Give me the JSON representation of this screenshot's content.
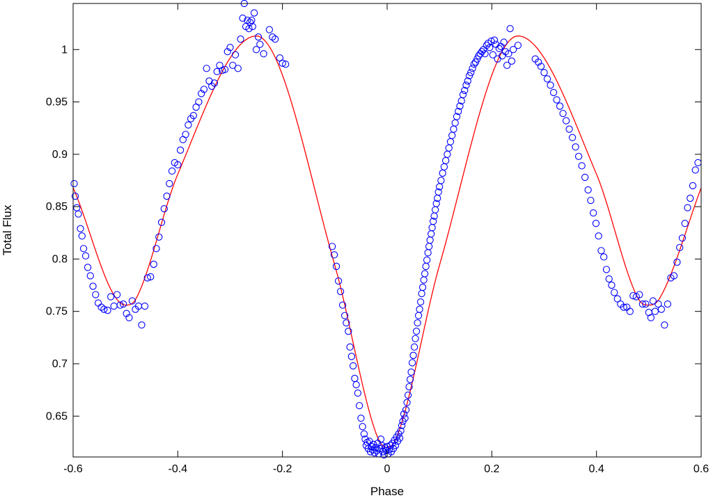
{
  "chart_data": {
    "type": "scatter",
    "title": "",
    "xlabel": "Phase",
    "ylabel": "Total Flux",
    "xlim": [
      -0.6,
      0.6
    ],
    "ylim": [
      0.611,
      1.044
    ],
    "grid": false,
    "legend": "none",
    "x_ticks": [
      -0.6,
      -0.4,
      -0.2,
      0,
      0.2,
      0.4,
      0.6
    ],
    "x_tick_labels": [
      "-0.6",
      "-0.4",
      "-0.2",
      "0",
      "0.2",
      "0.4",
      "0.6"
    ],
    "y_ticks": [
      0.65,
      0.7,
      0.75,
      0.8,
      0.85,
      0.9,
      0.95,
      1.0
    ],
    "y_tick_labels": [
      "0.65",
      "0.7",
      "0.75",
      "0.8",
      "0.85",
      "0.9",
      "0.95",
      "1"
    ],
    "colors": {
      "observed": "#0000ff",
      "model": "#ff0000"
    },
    "series": [
      {
        "kind": "scatter",
        "marker": "open-circle",
        "points": [
          [
            -0.598,
            0.872
          ],
          [
            -0.596,
            0.86
          ],
          [
            -0.593,
            0.849
          ],
          [
            -0.59,
            0.843
          ],
          [
            -0.586,
            0.829
          ],
          [
            -0.583,
            0.822
          ],
          [
            -0.58,
            0.81
          ],
          [
            -0.576,
            0.803
          ],
          [
            -0.572,
            0.792
          ],
          [
            -0.567,
            0.784
          ],
          [
            -0.562,
            0.774
          ],
          [
            -0.557,
            0.766
          ],
          [
            -0.552,
            0.758
          ],
          [
            -0.546,
            0.754
          ],
          [
            -0.541,
            0.752
          ],
          [
            -0.534,
            0.751
          ],
          [
            -0.528,
            0.764
          ],
          [
            -0.522,
            0.755
          ],
          [
            -0.516,
            0.766
          ],
          [
            -0.51,
            0.756
          ],
          [
            -0.504,
            0.757
          ],
          [
            -0.498,
            0.748
          ],
          [
            -0.493,
            0.744
          ],
          [
            -0.487,
            0.76
          ],
          [
            -0.481,
            0.752
          ],
          [
            -0.475,
            0.755
          ],
          [
            -0.469,
            0.737
          ],
          [
            -0.463,
            0.755
          ],
          [
            -0.458,
            0.782
          ],
          [
            -0.452,
            0.783
          ],
          [
            -0.446,
            0.795
          ],
          [
            -0.441,
            0.81
          ],
          [
            -0.436,
            0.821
          ],
          [
            -0.431,
            0.835
          ],
          [
            -0.426,
            0.848
          ],
          [
            -0.421,
            0.86
          ],
          [
            -0.416,
            0.872
          ],
          [
            -0.411,
            0.884
          ],
          [
            -0.406,
            0.892
          ],
          [
            -0.4,
            0.89
          ],
          [
            -0.395,
            0.904
          ],
          [
            -0.39,
            0.914
          ],
          [
            -0.385,
            0.919
          ],
          [
            -0.38,
            0.928
          ],
          [
            -0.375,
            0.934
          ],
          [
            -0.37,
            0.937
          ],
          [
            -0.365,
            0.945
          ],
          [
            -0.36,
            0.95
          ],
          [
            -0.355,
            0.958
          ],
          [
            -0.35,
            0.962
          ],
          [
            -0.345,
            0.982
          ],
          [
            -0.34,
            0.97
          ],
          [
            -0.335,
            0.965
          ],
          [
            -0.33,
            0.968
          ],
          [
            -0.325,
            0.979
          ],
          [
            -0.32,
            0.985
          ],
          [
            -0.315,
            0.98
          ],
          [
            -0.31,
            0.981
          ],
          [
            -0.305,
            0.998
          ],
          [
            -0.3,
            1.002
          ],
          [
            -0.295,
            0.985
          ],
          [
            -0.29,
            0.995
          ],
          [
            -0.285,
            0.982
          ],
          [
            -0.28,
            1.01
          ],
          [
            -0.276,
            1.03
          ],
          [
            -0.273,
            1.044
          ],
          [
            -0.27,
            1.022
          ],
          [
            -0.267,
            1.028
          ],
          [
            -0.264,
            1.02
          ],
          [
            -0.262,
            1.026
          ],
          [
            -0.259,
            1.028
          ],
          [
            -0.257,
            1.022
          ],
          [
            -0.254,
            1.035
          ],
          [
            -0.25,
            1.0
          ],
          [
            -0.246,
            1.012
          ],
          [
            -0.243,
            1.005
          ],
          [
            -0.236,
            0.996
          ],
          [
            -0.225,
            1.019
          ],
          [
            -0.219,
            1.012
          ],
          [
            -0.214,
            1.01
          ],
          [
            -0.205,
            0.992
          ],
          [
            -0.2,
            0.987
          ],
          [
            -0.194,
            0.986
          ],
          [
            -0.105,
            0.812
          ],
          [
            -0.101,
            0.804
          ],
          [
            -0.097,
            0.793
          ],
          [
            -0.093,
            0.779
          ],
          [
            -0.089,
            0.769
          ],
          [
            -0.085,
            0.756
          ],
          [
            -0.081,
            0.746
          ],
          [
            -0.078,
            0.739
          ],
          [
            -0.074,
            0.731
          ],
          [
            -0.071,
            0.716
          ],
          [
            -0.068,
            0.707
          ],
          [
            -0.065,
            0.698
          ],
          [
            -0.062,
            0.686
          ],
          [
            -0.059,
            0.68
          ],
          [
            -0.056,
            0.672
          ],
          [
            -0.053,
            0.66
          ],
          [
            -0.05,
            0.648
          ],
          [
            -0.047,
            0.64
          ],
          [
            -0.044,
            0.633
          ],
          [
            -0.042,
            0.628
          ],
          [
            -0.04,
            0.622
          ],
          [
            -0.038,
            0.625
          ],
          [
            -0.036,
            0.619
          ],
          [
            -0.034,
            0.626
          ],
          [
            -0.032,
            0.616
          ],
          [
            -0.03,
            0.621
          ],
          [
            -0.028,
            0.618
          ],
          [
            -0.026,
            0.623
          ],
          [
            -0.024,
            0.615
          ],
          [
            -0.022,
            0.62
          ],
          [
            -0.02,
            0.617
          ],
          [
            -0.018,
            0.624
          ],
          [
            -0.016,
            0.614
          ],
          [
            -0.014,
            0.619
          ],
          [
            -0.012,
            0.628
          ],
          [
            -0.01,
            0.622
          ],
          [
            -0.008,
            0.616
          ],
          [
            -0.006,
            0.613
          ],
          [
            -0.004,
            0.62
          ],
          [
            -0.002,
            0.617
          ],
          [
            0.0,
            0.621
          ],
          [
            0.002,
            0.614
          ],
          [
            0.004,
            0.618
          ],
          [
            0.006,
            0.622
          ],
          [
            0.008,
            0.616
          ],
          [
            0.01,
            0.624
          ],
          [
            0.012,
            0.619
          ],
          [
            0.014,
            0.627
          ],
          [
            0.016,
            0.622
          ],
          [
            0.018,
            0.63
          ],
          [
            0.02,
            0.626
          ],
          [
            0.022,
            0.633
          ],
          [
            0.024,
            0.629
          ],
          [
            0.026,
            0.636
          ],
          [
            0.028,
            0.641
          ],
          [
            0.03,
            0.645
          ],
          [
            0.032,
            0.652
          ],
          [
            0.034,
            0.648
          ],
          [
            0.036,
            0.656
          ],
          [
            0.038,
            0.663
          ],
          [
            0.04,
            0.67
          ],
          [
            0.042,
            0.678
          ],
          [
            0.044,
            0.685
          ],
          [
            0.046,
            0.692
          ],
          [
            0.048,
            0.701
          ],
          [
            0.05,
            0.708
          ],
          [
            0.052,
            0.716
          ],
          [
            0.054,
            0.724
          ],
          [
            0.056,
            0.731
          ],
          [
            0.058,
            0.739
          ],
          [
            0.06,
            0.746
          ],
          [
            0.062,
            0.752
          ],
          [
            0.064,
            0.759
          ],
          [
            0.066,
            0.767
          ],
          [
            0.068,
            0.773
          ],
          [
            0.07,
            0.78
          ],
          [
            0.072,
            0.786
          ],
          [
            0.074,
            0.793
          ],
          [
            0.076,
            0.799
          ],
          [
            0.078,
            0.806
          ],
          [
            0.08,
            0.812
          ],
          [
            0.082,
            0.818
          ],
          [
            0.084,
            0.824
          ],
          [
            0.086,
            0.83
          ],
          [
            0.088,
            0.836
          ],
          [
            0.09,
            0.841
          ],
          [
            0.092,
            0.847
          ],
          [
            0.094,
            0.853
          ],
          [
            0.096,
            0.858
          ],
          [
            0.098,
            0.864
          ],
          [
            0.1,
            0.869
          ],
          [
            0.103,
            0.875
          ],
          [
            0.106,
            0.882
          ],
          [
            0.109,
            0.888
          ],
          [
            0.112,
            0.894
          ],
          [
            0.115,
            0.9
          ],
          [
            0.118,
            0.906
          ],
          [
            0.121,
            0.912
          ],
          [
            0.124,
            0.918
          ],
          [
            0.127,
            0.924
          ],
          [
            0.13,
            0.93
          ],
          [
            0.133,
            0.936
          ],
          [
            0.136,
            0.941
          ],
          [
            0.139,
            0.946
          ],
          [
            0.142,
            0.951
          ],
          [
            0.145,
            0.957
          ],
          [
            0.148,
            0.961
          ],
          [
            0.151,
            0.966
          ],
          [
            0.154,
            0.97
          ],
          [
            0.157,
            0.975
          ],
          [
            0.16,
            0.978
          ],
          [
            0.163,
            0.982
          ],
          [
            0.166,
            0.986
          ],
          [
            0.169,
            0.988
          ],
          [
            0.172,
            0.991
          ],
          [
            0.175,
            0.994
          ],
          [
            0.178,
            0.996
          ],
          [
            0.181,
            0.998
          ],
          [
            0.184,
            1.0
          ],
          [
            0.187,
            0.996
          ],
          [
            0.19,
            1.004
          ],
          [
            0.193,
            1.006
          ],
          [
            0.196,
            1.002
          ],
          [
            0.199,
            1.008
          ],
          [
            0.202,
            0.995
          ],
          [
            0.205,
            1.009
          ],
          [
            0.208,
            1.005
          ],
          [
            0.211,
            0.991
          ],
          [
            0.214,
            1.001
          ],
          [
            0.217,
            1.003
          ],
          [
            0.22,
            0.994
          ],
          [
            0.223,
            1.007
          ],
          [
            0.226,
            0.998
          ],
          [
            0.229,
            0.985
          ],
          [
            0.232,
            0.996
          ],
          [
            0.235,
            1.02
          ],
          [
            0.238,
            0.989
          ],
          [
            0.241,
            1.0
          ],
          [
            0.25,
            1.004
          ],
          [
            0.283,
            0.991
          ],
          [
            0.289,
            0.988
          ],
          [
            0.294,
            0.984
          ],
          [
            0.3,
            0.978
          ],
          [
            0.306,
            0.972
          ],
          [
            0.312,
            0.966
          ],
          [
            0.318,
            0.959
          ],
          [
            0.324,
            0.952
          ],
          [
            0.33,
            0.946
          ],
          [
            0.336,
            0.939
          ],
          [
            0.342,
            0.932
          ],
          [
            0.348,
            0.924
          ],
          [
            0.354,
            0.916
          ],
          [
            0.36,
            0.907
          ],
          [
            0.366,
            0.898
          ],
          [
            0.372,
            0.889
          ],
          [
            0.378,
            0.878
          ],
          [
            0.384,
            0.866
          ],
          [
            0.389,
            0.856
          ],
          [
            0.394,
            0.844
          ],
          [
            0.399,
            0.834
          ],
          [
            0.404,
            0.822
          ],
          [
            0.409,
            0.808
          ],
          [
            0.414,
            0.802
          ],
          [
            0.419,
            0.79
          ],
          [
            0.424,
            0.781
          ],
          [
            0.429,
            0.775
          ],
          [
            0.434,
            0.768
          ],
          [
            0.44,
            0.762
          ],
          [
            0.446,
            0.757
          ],
          [
            0.452,
            0.754
          ],
          [
            0.458,
            0.754
          ],
          [
            0.464,
            0.75
          ],
          [
            0.47,
            0.765
          ],
          [
            0.476,
            0.764
          ],
          [
            0.482,
            0.766
          ],
          [
            0.488,
            0.757
          ],
          [
            0.494,
            0.757
          ],
          [
            0.5,
            0.749
          ],
          [
            0.504,
            0.744
          ],
          [
            0.508,
            0.76
          ],
          [
            0.512,
            0.75
          ],
          [
            0.518,
            0.757
          ],
          [
            0.524,
            0.752
          ],
          [
            0.53,
            0.737
          ],
          [
            0.536,
            0.757
          ],
          [
            0.542,
            0.782
          ],
          [
            0.548,
            0.784
          ],
          [
            0.554,
            0.797
          ],
          [
            0.559,
            0.811
          ],
          [
            0.564,
            0.82
          ],
          [
            0.569,
            0.834
          ],
          [
            0.574,
            0.849
          ],
          [
            0.579,
            0.858
          ],
          [
            0.584,
            0.87
          ],
          [
            0.589,
            0.885
          ],
          [
            0.594,
            0.892
          ]
        ]
      },
      {
        "kind": "line",
        "x": [
          -0.6,
          -0.5,
          -0.48,
          -0.4,
          -0.25,
          -0.1,
          -0.02,
          0,
          0.02,
          0.1,
          0.25,
          0.4,
          0.48,
          0.5,
          0.52,
          0.6
        ],
        "y": [
          0.868,
          0.756,
          0.762,
          0.881,
          1.013,
          0.794,
          0.632,
          0.62,
          0.632,
          0.794,
          1.013,
          0.881,
          0.762,
          0.756,
          0.762,
          0.868
        ]
      }
    ]
  }
}
